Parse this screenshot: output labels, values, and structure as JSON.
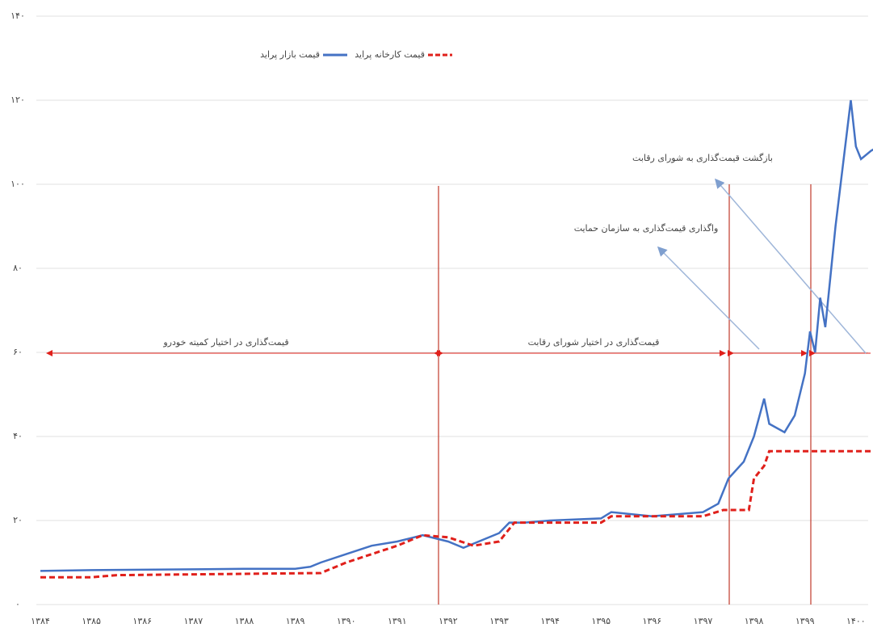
{
  "chart_data": {
    "type": "line",
    "legend": "top",
    "grid": true,
    "xlim": [
      1384,
      1400.7
    ],
    "ylim": [
      0,
      140
    ],
    "yticks": [
      {
        "value": 0,
        "label": "۰"
      },
      {
        "value": 20,
        "label": "۲۰"
      },
      {
        "value": 40,
        "label": "۴۰"
      },
      {
        "value": 60,
        "label": "۶۰"
      },
      {
        "value": 80,
        "label": "۸۰"
      },
      {
        "value": 100,
        "label": "۱۰۰"
      },
      {
        "value": 120,
        "label": "۱۲۰"
      },
      {
        "value": 140,
        "label": "۱۴۰"
      }
    ],
    "xticks": [
      {
        "value": 1384,
        "label": "۱۳۸۴"
      },
      {
        "value": 1385,
        "label": "۱۳۸۵"
      },
      {
        "value": 1386,
        "label": "۱۳۸۶"
      },
      {
        "value": 1387,
        "label": "۱۳۸۷"
      },
      {
        "value": 1388,
        "label": "۱۳۸۸"
      },
      {
        "value": 1389,
        "label": "۱۳۸۹"
      },
      {
        "value": 1390,
        "label": "۱۳۹۰"
      },
      {
        "value": 1391,
        "label": "۱۳۹۱"
      },
      {
        "value": 1392,
        "label": "۱۳۹۲"
      },
      {
        "value": 1393,
        "label": "۱۳۹۳"
      },
      {
        "value": 1394,
        "label": "۱۳۹۴"
      },
      {
        "value": 1395,
        "label": "۱۳۹۵"
      },
      {
        "value": 1396,
        "label": "۱۳۹۶"
      },
      {
        "value": 1397,
        "label": "۱۳۹۷"
      },
      {
        "value": 1398,
        "label": "۱۳۹۸"
      },
      {
        "value": 1399,
        "label": "۱۳۹۹"
      },
      {
        "value": 1400,
        "label": "۱۴۰۰"
      }
    ],
    "series": [
      {
        "name": "قیمت بازار پراید",
        "color": "#4472c4",
        "dash": false,
        "x": [
          1384,
          1385,
          1388,
          1389,
          1389.3,
          1389.5,
          1390,
          1390.5,
          1391,
          1391.5,
          1392,
          1392.3,
          1393,
          1393.2,
          1393.5,
          1394,
          1395,
          1395.2,
          1396,
          1397,
          1397.3,
          1397.5,
          1397.8,
          1398,
          1398.2,
          1398.3,
          1398.6,
          1398.8,
          1399,
          1399.1,
          1399.2,
          1399.3,
          1399.4,
          1399.6,
          1399.9,
          1400,
          1400.1,
          1400.3,
          1400.6
        ],
        "values": [
          8,
          8.2,
          8.5,
          8.5,
          9,
          10,
          12,
          14,
          15,
          16.5,
          15,
          13.5,
          17,
          19.5,
          19.5,
          20,
          20.5,
          22,
          21,
          22,
          24,
          30,
          34,
          40,
          49,
          43,
          41,
          45,
          55,
          65,
          60,
          73,
          66,
          90,
          120,
          109,
          106,
          108,
          110
        ]
      },
      {
        "name": "قیمت کارخانه پراید",
        "color": "#e0201b",
        "dash": true,
        "x": [
          1384,
          1385,
          1385.5,
          1389.5,
          1390,
          1391,
          1391.5,
          1392,
          1392.5,
          1393,
          1393.3,
          1394,
          1395,
          1395.2,
          1397,
          1397.4,
          1397.9,
          1398,
          1398.2,
          1398.3,
          1400.6
        ],
        "values": [
          6.5,
          6.5,
          7,
          7.5,
          10,
          14,
          16.5,
          16,
          14,
          15,
          19.5,
          19.5,
          19.5,
          21,
          21,
          22.5,
          22.5,
          30,
          33,
          36.5,
          36.5
        ]
      }
    ],
    "annotations": {
      "period_1": "قیمت‌گذاری در اختیار کمیته خودرو",
      "period_2": "قیمت‌گذاری در اختیار شورای رقابت",
      "event_1": "واگذاری قیمت‌گذاری به سازمان حمایت",
      "event_2": "بازگشت قیمت‌گذاری به شورای رقابت"
    }
  }
}
